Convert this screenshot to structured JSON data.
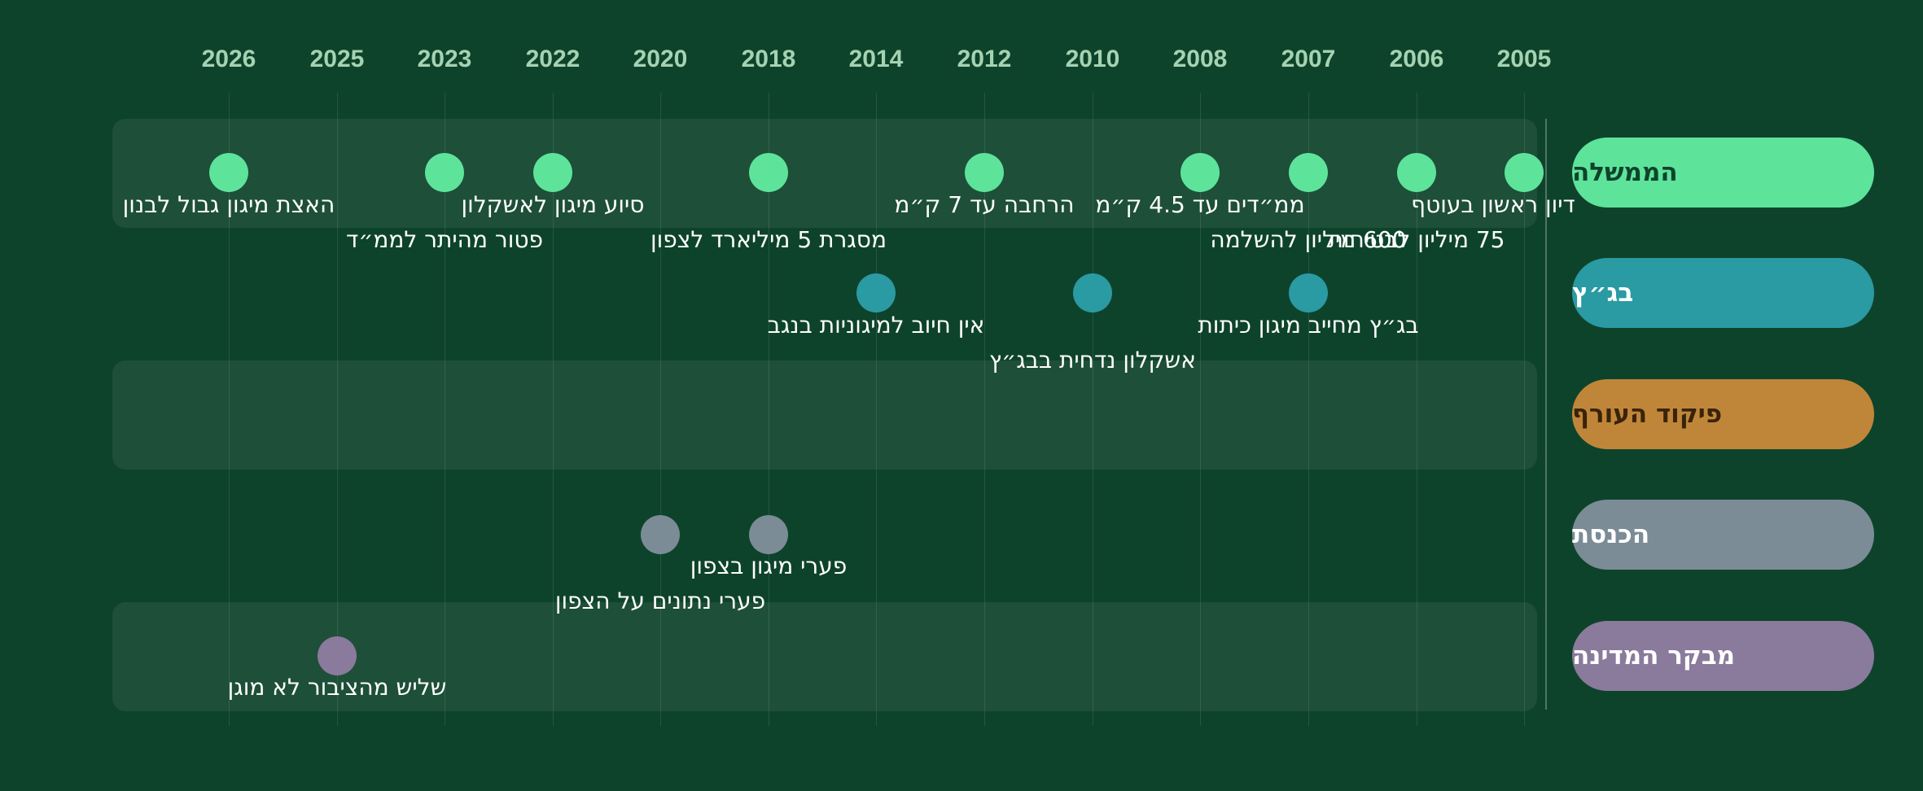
{
  "years": [
    "2005",
    "2006",
    "2007",
    "2008",
    "2010",
    "2012",
    "2014",
    "2018",
    "2020",
    "2022",
    "2023",
    "2025",
    "2026"
  ],
  "lanes": [
    {
      "id": "government",
      "label": "הממשלה",
      "color": "#5ee39b",
      "text_color": "#0e432b"
    },
    {
      "id": "supreme_court",
      "label": "בג״ץ",
      "color": "#2a9aa3",
      "text_color": "#ffffff"
    },
    {
      "id": "home_front_command",
      "label": "פיקוד העורף",
      "color": "#bf863a",
      "text_color": "#3a2308"
    },
    {
      "id": "knesset",
      "label": "הכנסת",
      "color": "#7b8c96",
      "text_color": "#ffffff"
    },
    {
      "id": "state_comptroller",
      "label": "מבקר המדינה",
      "color": "#8a7a9c",
      "text_color": "#ffffff"
    }
  ],
  "events": [
    {
      "lane": "government",
      "year": "2005",
      "label": "דיון ראשון בעוטף"
    },
    {
      "lane": "government",
      "year": "2006",
      "label": "75 מיליון לבטיחות"
    },
    {
      "lane": "government",
      "year": "2007",
      "label": "600 מיליון להשלמה"
    },
    {
      "lane": "government",
      "year": "2008",
      "label": "ממ״דים עד 4.5 ק״מ"
    },
    {
      "lane": "government",
      "year": "2012",
      "label": "הרחבה עד 7 ק״מ"
    },
    {
      "lane": "government",
      "year": "2018",
      "label": "מסגרת 5 מיליארד לצפון"
    },
    {
      "lane": "government",
      "year": "2022",
      "label": "סיוע מיגון לאשקלון"
    },
    {
      "lane": "government",
      "year": "2023",
      "label": "פטור מהיתר לממ״ד"
    },
    {
      "lane": "government",
      "year": "2026",
      "label": "האצת מיגון גבול לבנון"
    },
    {
      "lane": "supreme_court",
      "year": "2007",
      "label": "בג״ץ מחייב מיגון כיתות"
    },
    {
      "lane": "supreme_court",
      "year": "2010",
      "label": "אשקלון נדחית בבג״ץ"
    },
    {
      "lane": "supreme_court",
      "year": "2014",
      "label": "אין חיוב למיגוניות בנגב"
    },
    {
      "lane": "knesset",
      "year": "2018",
      "label": "פערי מיגון בצפון"
    },
    {
      "lane": "knesset",
      "year": "2020",
      "label": "פערי נתונים על הצפון"
    },
    {
      "lane": "state_comptroller",
      "year": "2025",
      "label": "שליש מהציבור לא מוגן"
    }
  ]
}
